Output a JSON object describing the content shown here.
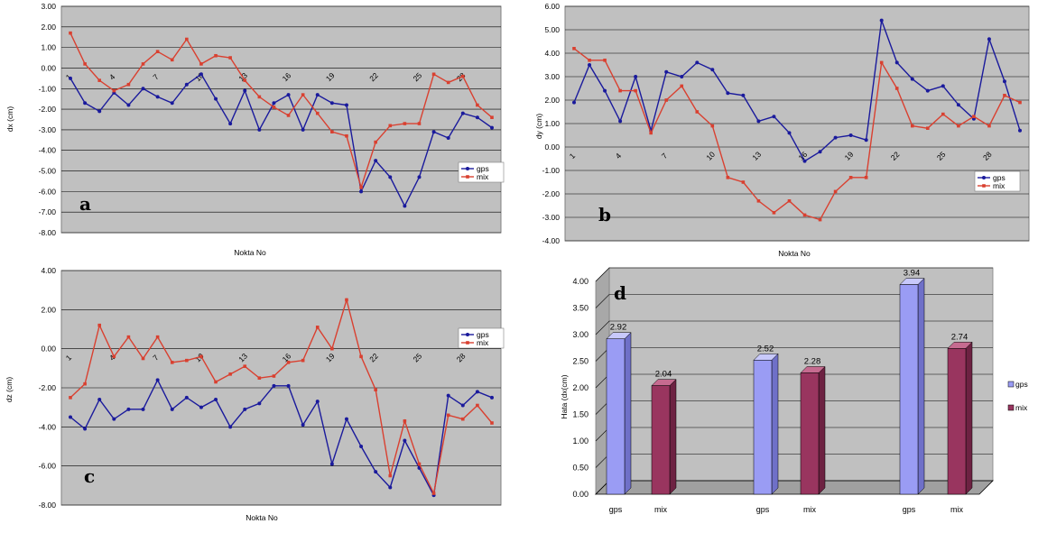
{
  "chart_data": [
    {
      "panel": "a",
      "type": "line",
      "xlabel": "Nokta No",
      "ylabel": "dx (cm)",
      "ylim": [
        -8,
        3
      ],
      "ytick_step": 1,
      "x_ticks": [
        1,
        4,
        7,
        10,
        13,
        16,
        19,
        22,
        25,
        28
      ],
      "grid": true,
      "legend": "right",
      "series": [
        {
          "name": "gps",
          "color": "#1a1a9c",
          "values": [
            -0.5,
            -1.7,
            -2.1,
            -1.2,
            -1.8,
            -1.0,
            -1.4,
            -1.7,
            -0.8,
            -0.3,
            -1.5,
            -2.7,
            -1.1,
            -3.0,
            -1.7,
            -1.3,
            -3.0,
            -1.3,
            -1.7,
            -1.8,
            -6.0,
            -4.5,
            -5.3,
            -6.7,
            -5.3,
            -3.1,
            -3.4,
            -2.2,
            -2.4,
            -2.9
          ]
        },
        {
          "name": "mix",
          "color": "#d94030",
          "values": [
            1.7,
            0.2,
            -0.6,
            -1.1,
            -0.8,
            0.2,
            0.8,
            0.4,
            1.4,
            0.2,
            0.6,
            0.5,
            -0.6,
            -1.4,
            -1.9,
            -2.3,
            -1.3,
            -2.2,
            -3.1,
            -3.3,
            -5.8,
            -3.6,
            -2.8,
            -2.7,
            -2.7,
            -0.3,
            -0.7,
            -0.4,
            -1.8,
            -2.4
          ]
        }
      ]
    },
    {
      "panel": "b",
      "type": "line",
      "xlabel": "Nokta No",
      "ylabel": "dy (cm)",
      "ylim": [
        -4,
        6
      ],
      "ytick_step": 1,
      "x_ticks": [
        1,
        4,
        7,
        10,
        13,
        16,
        19,
        22,
        25,
        28
      ],
      "grid": true,
      "legend": "bottom-right",
      "series": [
        {
          "name": "gps",
          "color": "#1a1a9c",
          "values": [
            1.9,
            3.5,
            2.4,
            1.1,
            3.0,
            0.7,
            3.2,
            3.0,
            3.6,
            3.3,
            2.3,
            2.2,
            1.1,
            1.3,
            0.6,
            -0.6,
            -0.2,
            0.4,
            0.5,
            0.3,
            5.4,
            3.6,
            2.9,
            2.4,
            2.6,
            1.8,
            1.2,
            4.6,
            2.8,
            0.7
          ]
        },
        {
          "name": "mix",
          "color": "#d94030",
          "values": [
            4.2,
            3.7,
            3.7,
            2.4,
            2.4,
            0.6,
            2.0,
            2.6,
            1.5,
            0.9,
            -1.3,
            -1.5,
            -2.3,
            -2.8,
            -2.3,
            -2.9,
            -3.1,
            -1.9,
            -1.3,
            -1.3,
            3.6,
            2.5,
            0.9,
            0.8,
            1.4,
            0.9,
            1.3,
            0.9,
            2.2,
            1.9
          ]
        }
      ]
    },
    {
      "panel": "c",
      "type": "line",
      "xlabel": "Nokta No",
      "ylabel": "dz (cm)",
      "ylim": [
        -8,
        4
      ],
      "ytick_step": 2,
      "x_ticks": [
        1,
        4,
        7,
        10,
        13,
        16,
        19,
        22,
        25,
        28
      ],
      "grid": true,
      "legend": "top-right",
      "series": [
        {
          "name": "gps",
          "color": "#1a1a9c",
          "values": [
            -3.5,
            -4.1,
            -2.6,
            -3.6,
            -3.1,
            -3.1,
            -1.6,
            -3.1,
            -2.5,
            -3.0,
            -2.6,
            -4.0,
            -3.1,
            -2.8,
            -1.9,
            -1.9,
            -3.9,
            -2.7,
            -5.9,
            -3.6,
            -5.0,
            -6.3,
            -7.1,
            -4.7,
            -6.1,
            -7.5,
            -2.4,
            -2.9,
            -2.2,
            -2.5
          ]
        },
        {
          "name": "mix",
          "color": "#d94030",
          "values": [
            -2.5,
            -1.8,
            1.2,
            -0.4,
            0.6,
            -0.5,
            0.6,
            -0.7,
            -0.6,
            -0.4,
            -1.7,
            -1.3,
            -0.9,
            -1.5,
            -1.4,
            -0.7,
            -0.6,
            1.1,
            0.0,
            2.5,
            -0.4,
            -2.1,
            -6.5,
            -3.7,
            -5.9,
            -7.4,
            -3.4,
            -3.6,
            -2.9,
            -3.8
          ]
        }
      ]
    },
    {
      "panel": "d",
      "type": "bar",
      "ylabel": "Hata (dx(cm)",
      "ylim": [
        0,
        4
      ],
      "ytick_step": 0.5,
      "categories": [
        "gps",
        "mix",
        "gps",
        "mix",
        "gps",
        "mix"
      ],
      "groups": 3,
      "values": [
        2.92,
        2.04,
        2.52,
        2.28,
        3.94,
        2.74
      ],
      "value_labels": [
        "2.92",
        "2.04",
        "2.52",
        "2.28",
        "3.94",
        "2.74"
      ],
      "grid": true,
      "legend": "right",
      "series": [
        {
          "name": "gps",
          "color": "#9a9cf4"
        },
        {
          "name": "mix",
          "color": "#99355f"
        }
      ]
    }
  ]
}
